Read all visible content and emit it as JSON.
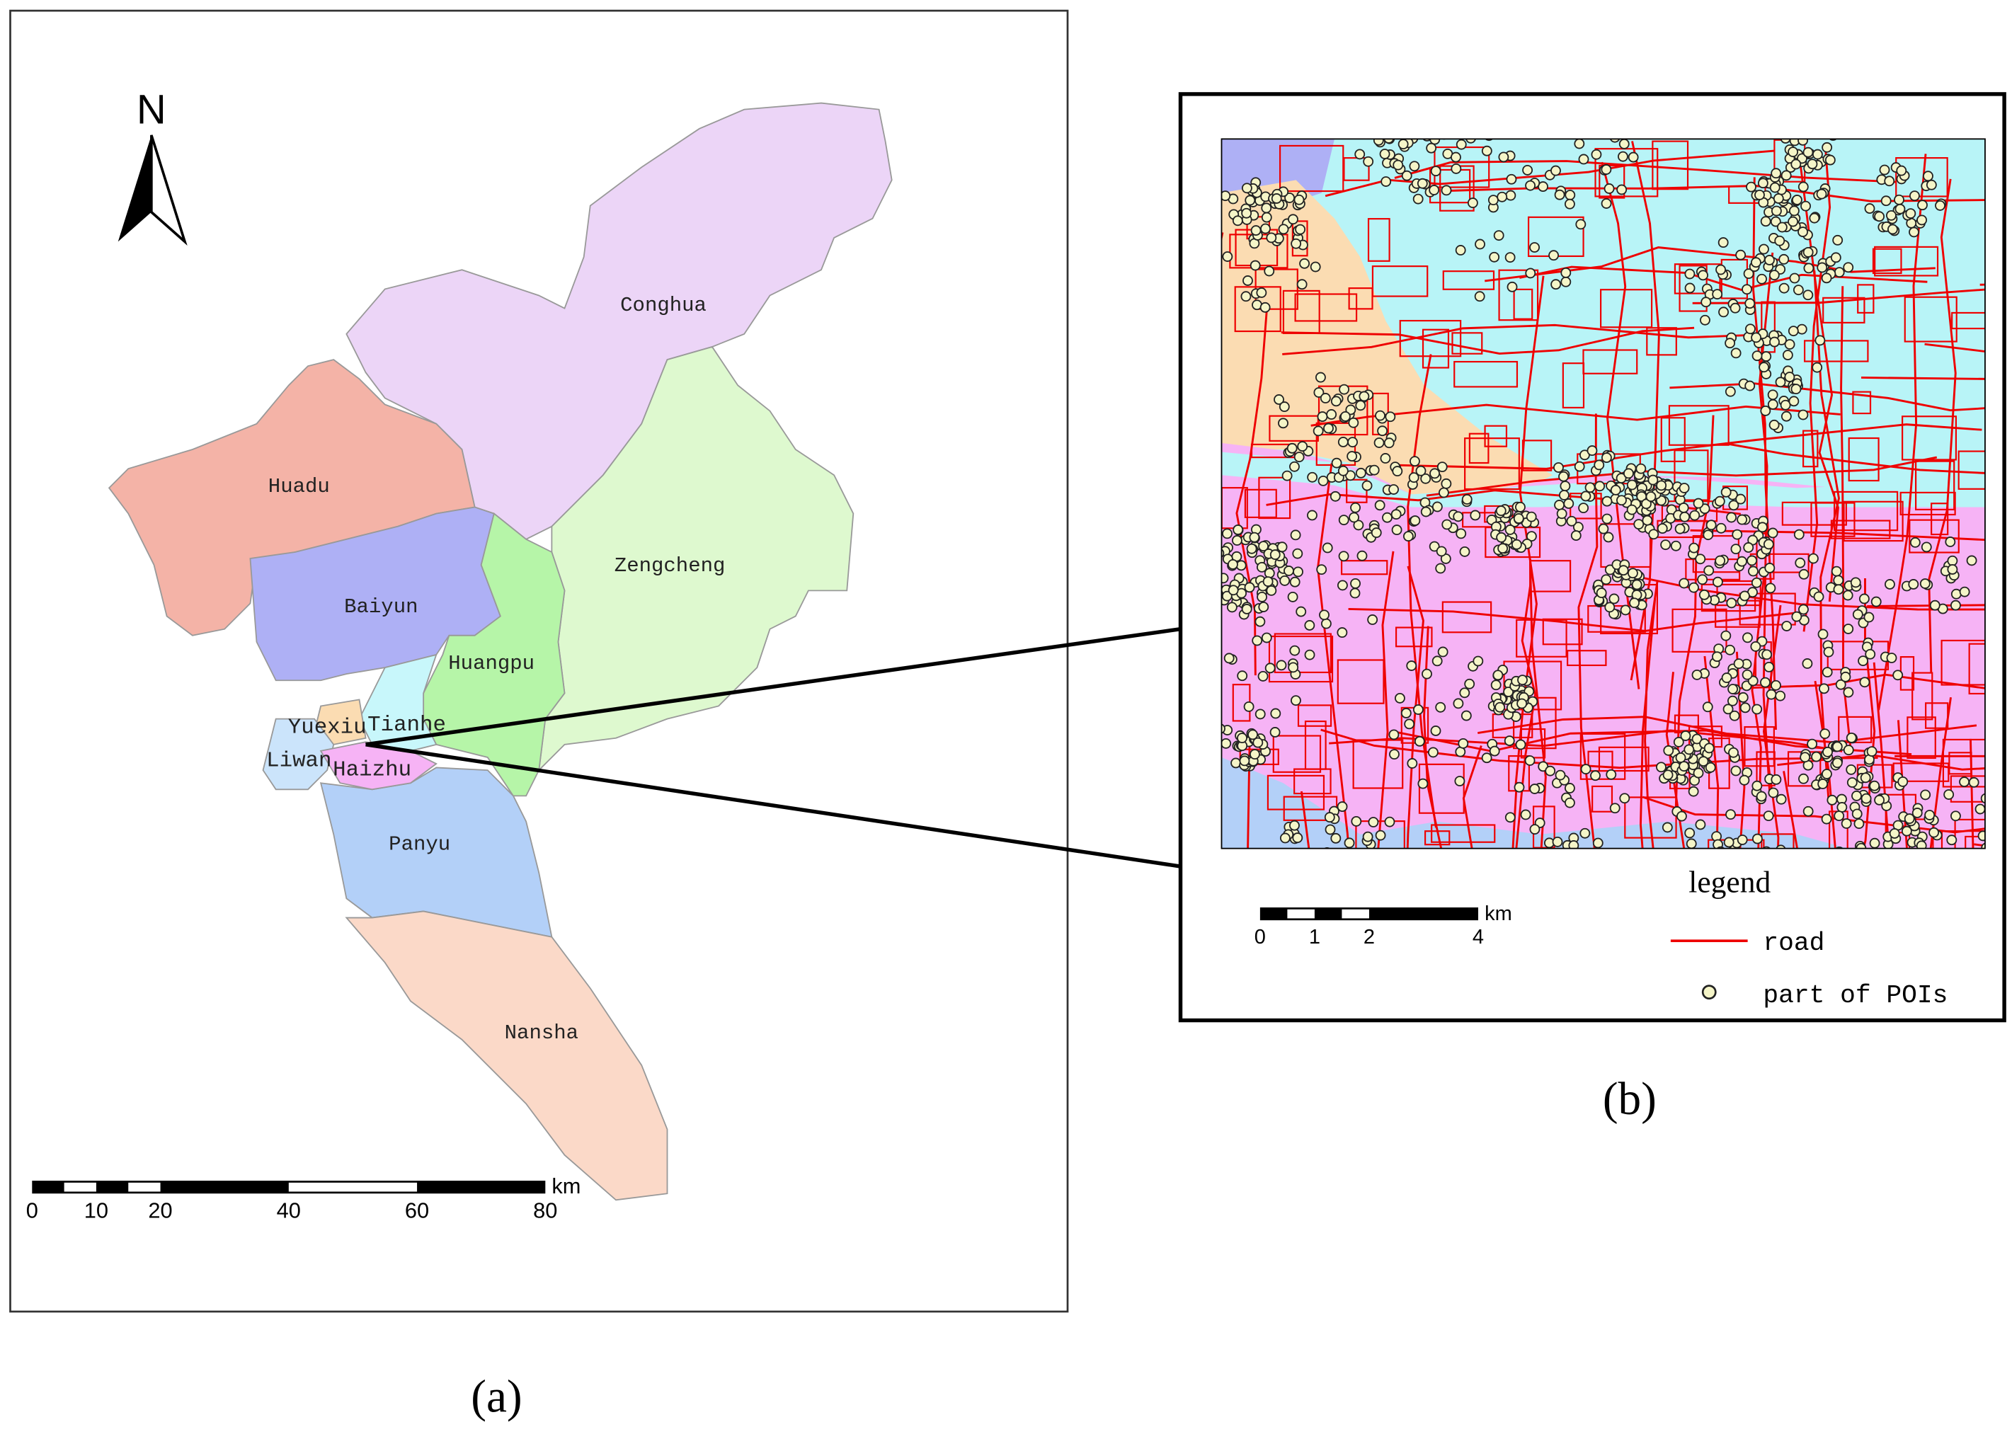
{
  "panel_a": {
    "north": "N",
    "districts": [
      "Conghua",
      "Huadu",
      "Zengcheng",
      "Baiyun",
      "Huangpu",
      "Tianhe",
      "Yuexiu",
      "Liwan",
      "Haizhu",
      "Panyu",
      "Nansha"
    ],
    "scale_bar": {
      "labels": [
        0,
        10,
        20,
        40,
        60,
        80
      ],
      "unit": "km"
    },
    "caption": "(a)"
  },
  "panel_b": {
    "scale_bar": {
      "labels": [
        0,
        1,
        2,
        4
      ],
      "unit": "km"
    },
    "legend": {
      "title": "legend",
      "items": [
        "road",
        "part of POIs"
      ]
    },
    "caption": "(b)"
  }
}
